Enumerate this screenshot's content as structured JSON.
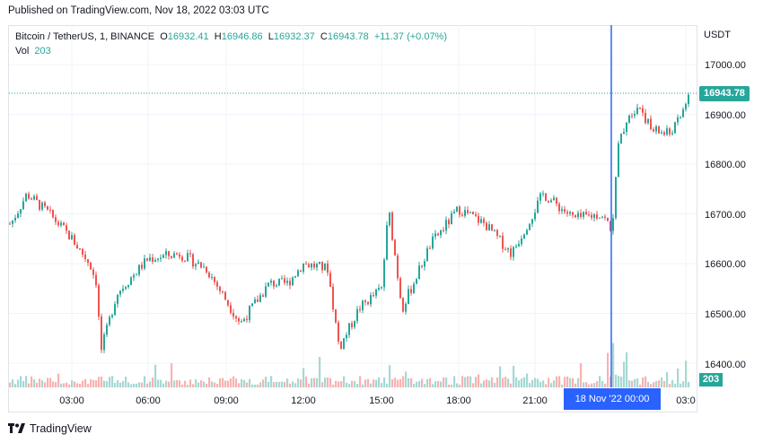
{
  "published": "Published on TradingView.com, Nov 18, 2022 03:03 UTC",
  "legend": {
    "symbol": "Bitcoin / TetherUS, 1, BINANCE",
    "o_label": "O",
    "o_value": "16932.41",
    "h_label": "H",
    "h_value": "16946.86",
    "l_label": "L",
    "l_value": "16932.37",
    "c_label": "C",
    "c_value": "16943.78",
    "change": "+11.37 (+0.07%)",
    "vol_label": "Vol",
    "vol_value": "203"
  },
  "axis": {
    "currency": "USDT",
    "y_ticks": [
      "17000.00",
      "16900.00",
      "16800.00",
      "16700.00",
      "16600.00",
      "16500.00",
      "16400.00"
    ],
    "x_ticks": [
      "03:00",
      "06:00",
      "09:00",
      "12:00",
      "15:00",
      "18:00",
      "21:00",
      "03:0"
    ]
  },
  "badges": {
    "last_price": "16943.78",
    "volume": "203",
    "crosshair_time": "18 Nov '22   00:00"
  },
  "brand": "TradingView",
  "colors": {
    "up": "#26a69a",
    "down": "#ef5350",
    "crosshair": "#2962ff",
    "vol_up": "#a6d8d3",
    "vol_down": "#f7b3b1"
  },
  "chart_data": {
    "type": "line",
    "title": "Bitcoin / TetherUS, 1, BINANCE",
    "ylim": [
      16380,
      17060
    ],
    "x": [
      "00:00",
      "01:00",
      "02:00",
      "03:00",
      "04:00",
      "05:00",
      "05:30",
      "06:00",
      "07:00",
      "08:00",
      "09:00",
      "09:30",
      "10:00",
      "11:00",
      "12:00",
      "13:00",
      "13:30",
      "14:00",
      "15:00",
      "15:10",
      "16:00",
      "17:00",
      "18:00",
      "19:00",
      "20:00",
      "21:00",
      "22:00",
      "23:00",
      "23:50",
      "00:00",
      "00:10",
      "00:30",
      "01:00",
      "01:30",
      "02:00",
      "02:30",
      "03:00"
    ],
    "series": [
      {
        "values": [
          16680,
          16740,
          16700,
          16650,
          16600,
          16560,
          16420,
          16540,
          16610,
          16620,
          16590,
          16480,
          16560,
          16560,
          16600,
          16590,
          16430,
          16510,
          16550,
          16710,
          16510,
          16640,
          16710,
          16680,
          16620,
          16740,
          16690,
          16700,
          16670,
          16710,
          16830,
          16900,
          16920,
          16870,
          16860,
          16890,
          16943.78
        ]
      }
    ]
  }
}
